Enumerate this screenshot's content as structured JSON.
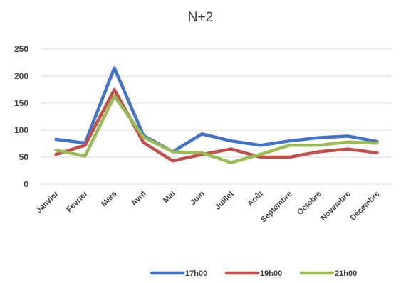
{
  "chart_data": {
    "type": "line",
    "title": "N+2",
    "xlabel": "",
    "ylabel": "",
    "ylim": [
      0,
      250
    ],
    "yticks": [
      0,
      50,
      100,
      150,
      200,
      250
    ],
    "grid": true,
    "legend": "bottom",
    "categories": [
      "Janvier",
      "Février",
      "Mars",
      "Avril",
      "Mai",
      "Juin",
      "Juillet",
      "Août",
      "Septembre",
      "Octobre",
      "Novembre",
      "Décembre"
    ],
    "series": [
      {
        "name": "17h00",
        "color": "#4472C4",
        "values": [
          83,
          76,
          215,
          90,
          60,
          93,
          80,
          72,
          80,
          86,
          89,
          79
        ]
      },
      {
        "name": "19h00",
        "color": "#C0504D",
        "values": [
          55,
          72,
          175,
          77,
          43,
          55,
          65,
          50,
          50,
          60,
          65,
          58
        ]
      },
      {
        "name": "21h00",
        "color": "#9BBB59",
        "values": [
          63,
          52,
          163,
          87,
          60,
          58,
          40,
          55,
          72,
          72,
          78,
          76
        ]
      }
    ]
  }
}
